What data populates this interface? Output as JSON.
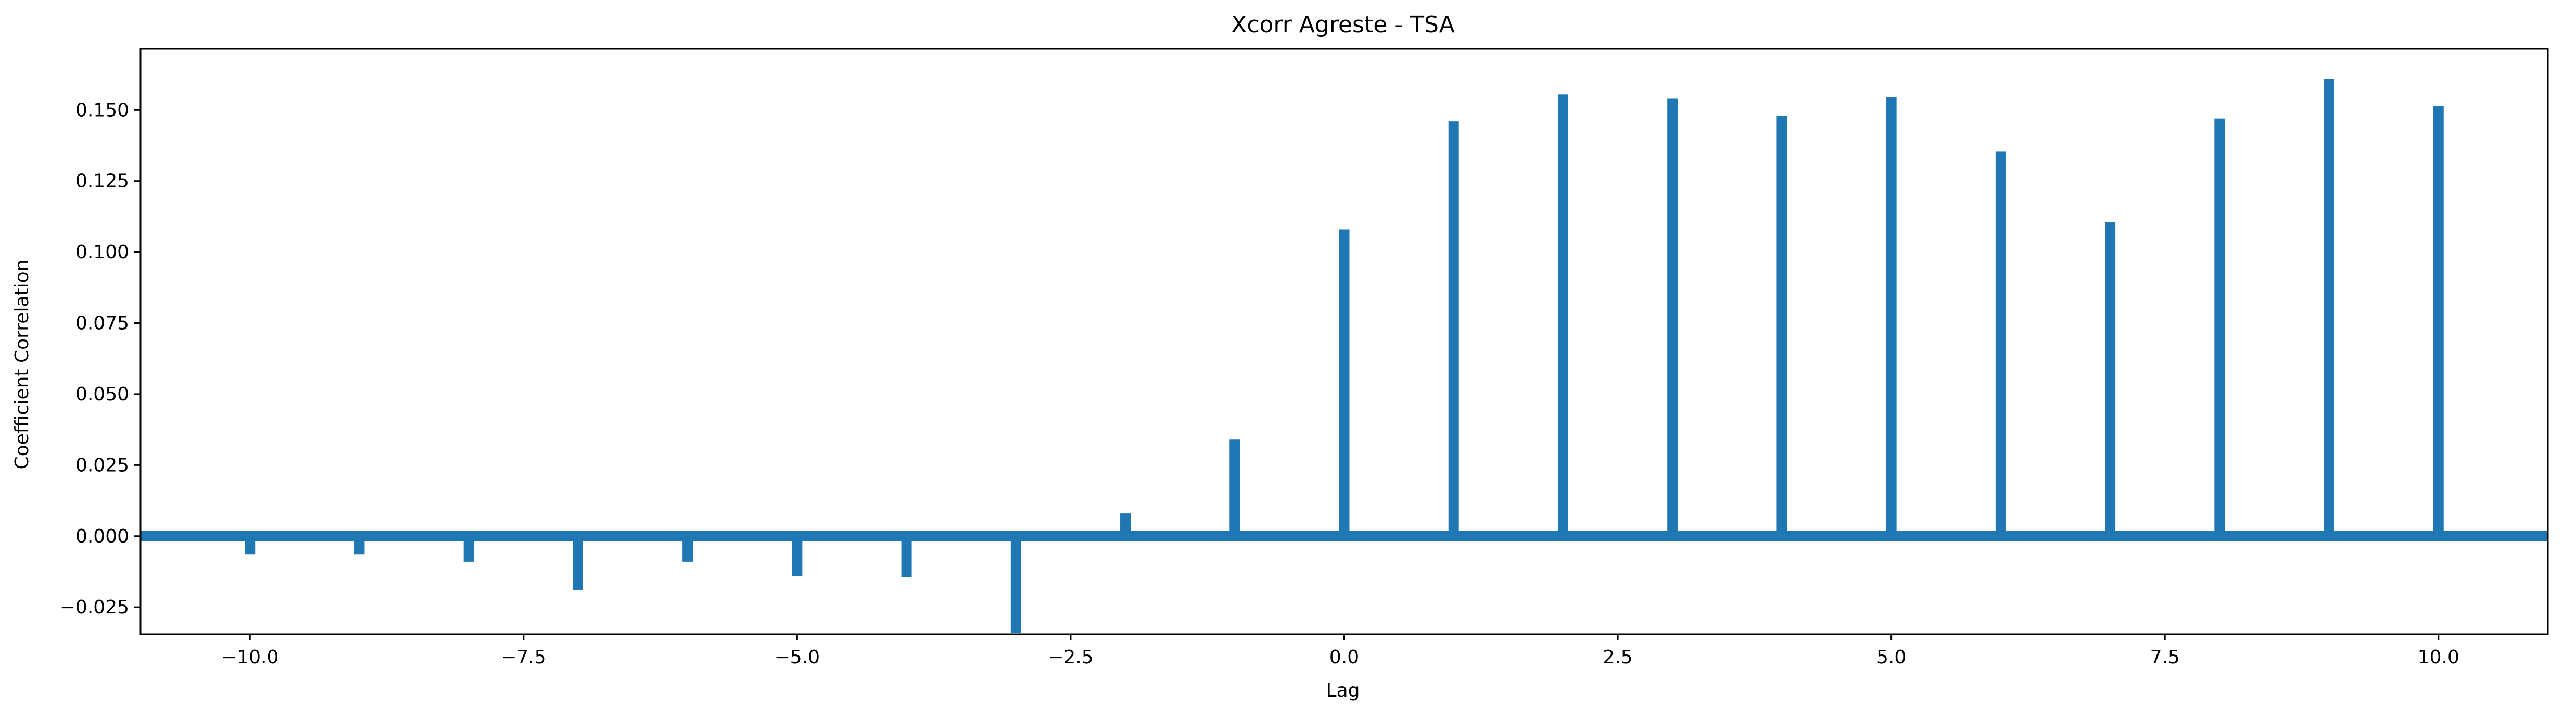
{
  "chart_data": {
    "type": "bar",
    "title": "Xcorr Agreste - TSA",
    "xlabel": "Lag",
    "ylabel": "Coefficient Correlation",
    "xlim": [
      -11,
      11
    ],
    "ylim": [
      -0.0345,
      0.1715
    ],
    "grid": false,
    "legend": "none",
    "bar_color": "#1f77b4",
    "baseline_color": "#1f77b4",
    "x": [
      -10,
      -9,
      -8,
      -7,
      -6,
      -5,
      -4,
      -3,
      -2,
      -1,
      0,
      1,
      2,
      3,
      4,
      5,
      6,
      7,
      8,
      9,
      10
    ],
    "values": [
      -0.0065,
      -0.0065,
      -0.009,
      -0.019,
      -0.009,
      -0.014,
      -0.0145,
      -0.034,
      0.008,
      0.034,
      0.108,
      0.146,
      0.1555,
      0.154,
      0.148,
      0.1545,
      0.1355,
      0.1105,
      0.147,
      0.161,
      0.1515
    ],
    "xticks": [
      -10.0,
      -7.5,
      -5.0,
      -2.5,
      0.0,
      2.5,
      5.0,
      7.5,
      10.0
    ],
    "xtick_labels": [
      "−10.0",
      "−7.5",
      "−5.0",
      "−2.5",
      "0.0",
      "2.5",
      "5.0",
      "7.5",
      "10.0"
    ],
    "yticks": [
      -0.025,
      0.0,
      0.025,
      0.05,
      0.075,
      0.1,
      0.125,
      0.15
    ],
    "ytick_labels": [
      "−0.025",
      "0.000",
      "0.025",
      "0.050",
      "0.075",
      "0.100",
      "0.125",
      "0.150"
    ]
  }
}
